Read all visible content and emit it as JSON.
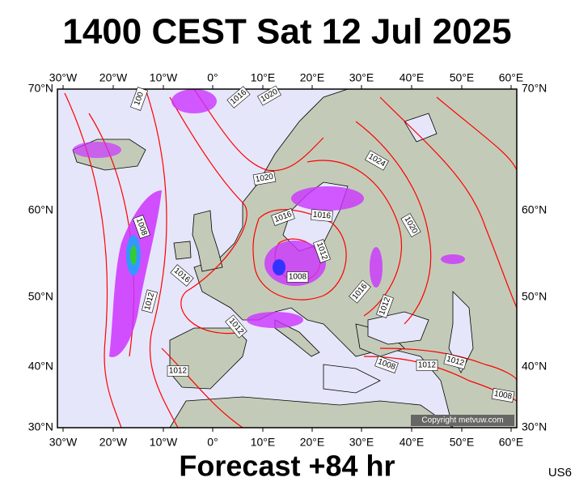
{
  "header": {
    "title": "1400 CEST Sat 12 Jul 2025"
  },
  "map": {
    "lon_labels": [
      "30°W",
      "20°W",
      "10°W",
      "0°",
      "10°E",
      "20°E",
      "30°E",
      "40°E",
      "50°E",
      "60°E"
    ],
    "lat_labels": [
      "70°N",
      "60°N",
      "50°N",
      "40°N",
      "30°N"
    ],
    "isobar_labels": [
      "100",
      "1016",
      "1020",
      "1024",
      "1020",
      "1016",
      "1016",
      "1008",
      "1020",
      "1012",
      "1016",
      "1008",
      "1012",
      "1016",
      "1012",
      "1012",
      "1012",
      "1008",
      "1012",
      "1012",
      "1008"
    ],
    "copyright": "Copyright metvuw.com"
  },
  "footer": {
    "forecast": "Forecast +84 hr",
    "code": "US6"
  }
}
